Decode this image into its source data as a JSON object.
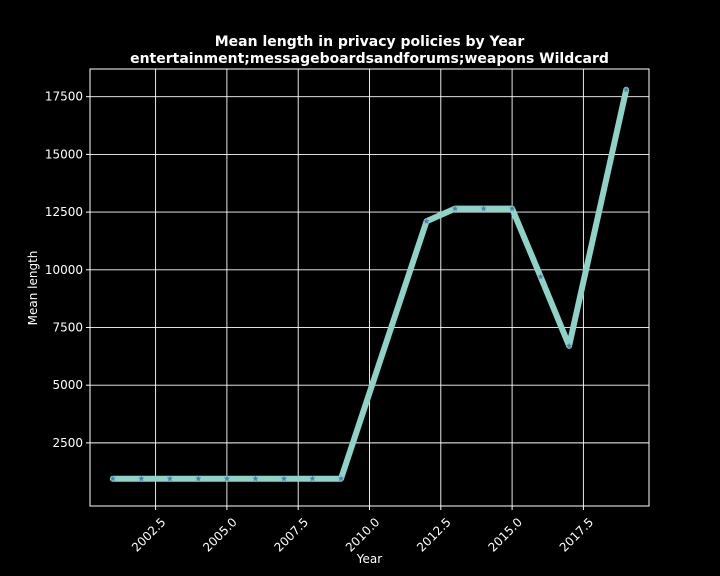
{
  "chart_data": {
    "type": "line",
    "title": "Mean length in privacy policies by Year",
    "subtitle": "entertainment;messageboardsandforums;weapons Wildcard",
    "xlabel": "Year",
    "ylabel": "Mean length",
    "x": [
      2001,
      2002,
      2003,
      2004,
      2005,
      2006,
      2007,
      2008,
      2009,
      2012,
      2013,
      2014,
      2015,
      2016,
      2017,
      2019
    ],
    "series": [
      {
        "values": [
          950,
          950,
          950,
          950,
          950,
          950,
          950,
          950,
          950,
          12100,
          12650,
          12650,
          12650,
          9700,
          6700,
          17800
        ]
      }
    ],
    "xlim": [
      2000.2,
      2019.8
    ],
    "ylim": [
      -235,
      18700
    ],
    "xticks": [
      2002.5,
      2005.0,
      2007.5,
      2010.0,
      2012.5,
      2015.0,
      2017.5
    ],
    "xtick_labels": [
      "2002.5",
      "2005.0",
      "2007.5",
      "2010.0",
      "2012.5",
      "2015.0",
      "2017.5"
    ],
    "yticks": [
      2500,
      5000,
      7500,
      10000,
      12500,
      15000,
      17500
    ],
    "ytick_labels": [
      "2500",
      "5000",
      "7500",
      "10000",
      "12500",
      "15000",
      "17500"
    ],
    "grid": true,
    "colors": {
      "background": "#000000",
      "axes": "#ffffff",
      "grid": "#ffffff",
      "line": "#8dd3c7",
      "marker": "#4f7fb5"
    }
  }
}
